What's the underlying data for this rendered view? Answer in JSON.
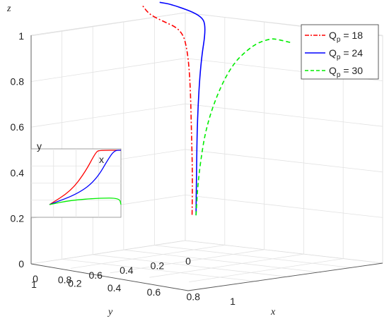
{
  "chart_data": {
    "type": "line",
    "title": "",
    "xlabel": "x",
    "ylabel": "y",
    "zlabel": "z",
    "x_ticks": [
      "0",
      "0.2",
      "0.4",
      "0.6",
      "0.8",
      "1"
    ],
    "y_ticks": [
      "1",
      "0.8",
      "0.6",
      "0.4",
      "0.2",
      "0"
    ],
    "z_ticks": [
      "0",
      "0.2",
      "0.4",
      "0.6",
      "0.8",
      "1"
    ],
    "xlim": [
      0,
      1
    ],
    "ylim": [
      0,
      1
    ],
    "zlim": [
      0,
      1
    ],
    "grid": true,
    "legend_position": "top-right",
    "series": [
      {
        "name_base": "Q",
        "name_sub": "p",
        "name_rest": " = 18",
        "color": "#ff0000",
        "style": "dash-dot",
        "points": [
          [
            0.05,
            0.02,
            0.12
          ],
          [
            0.06,
            0.03,
            0.3
          ],
          [
            0.07,
            0.05,
            0.5
          ],
          [
            0.08,
            0.07,
            0.7
          ],
          [
            0.09,
            0.1,
            0.85
          ],
          [
            0.1,
            0.15,
            0.95
          ],
          [
            0.07,
            0.25,
            1.0
          ],
          [
            0.05,
            0.3,
            1.03
          ],
          [
            0.04,
            0.33,
            1.07
          ]
        ]
      },
      {
        "name_base": "Q",
        "name_sub": "p",
        "name_rest": " = 24",
        "color": "#0000ff",
        "style": "solid",
        "points": [
          [
            0.07,
            0.02,
            0.12
          ],
          [
            0.08,
            0.03,
            0.3
          ],
          [
            0.1,
            0.05,
            0.55
          ],
          [
            0.14,
            0.08,
            0.8
          ],
          [
            0.2,
            0.12,
            0.97
          ],
          [
            0.22,
            0.18,
            1.03
          ],
          [
            0.15,
            0.28,
            1.08
          ],
          [
            0.12,
            0.32,
            1.09
          ]
        ]
      },
      {
        "name_base": "Q",
        "name_sub": "p",
        "name_rest": " = 30",
        "color": "#00ee00",
        "style": "dashed",
        "points": [
          [
            0.07,
            0.02,
            0.12
          ],
          [
            0.09,
            0.03,
            0.3
          ],
          [
            0.15,
            0.05,
            0.55
          ],
          [
            0.3,
            0.1,
            0.8
          ],
          [
            0.5,
            0.2,
            0.93
          ],
          [
            0.7,
            0.35,
            0.99
          ],
          [
            0.85,
            0.5,
            1.02
          ],
          [
            1.0,
            0.6,
            1.03
          ]
        ]
      }
    ],
    "inset": {
      "xlabel": "x",
      "ylabel": "y",
      "series": [
        {
          "name": "18",
          "color": "#ff0000",
          "points": [
            [
              0,
              0
            ],
            [
              0.3,
              0.25
            ],
            [
              0.5,
              0.6
            ],
            [
              0.65,
              0.97
            ],
            [
              0.7,
              1.0
            ],
            [
              1,
              1.0
            ]
          ]
        },
        {
          "name": "24",
          "color": "#0000ff",
          "points": [
            [
              0,
              0
            ],
            [
              0.4,
              0.2
            ],
            [
              0.65,
              0.45
            ],
            [
              0.85,
              0.9
            ],
            [
              0.92,
              1.0
            ],
            [
              1,
              1.0
            ]
          ]
        },
        {
          "name": "30",
          "color": "#00ee00",
          "points": [
            [
              0,
              0
            ],
            [
              0.3,
              0.08
            ],
            [
              0.7,
              0.12
            ],
            [
              0.98,
              0.12
            ],
            [
              1,
              0.0
            ]
          ]
        }
      ]
    }
  }
}
